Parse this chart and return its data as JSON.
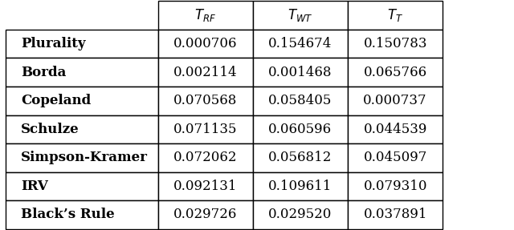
{
  "col_headers": [
    "$T_{RF}$",
    "$T_{WT}$",
    "$T_{T}$"
  ],
  "row_labels": [
    "Plurality",
    "Borda",
    "Copeland",
    "Schulze",
    "Simpson-Kramer",
    "IRV",
    "Black’s Rule"
  ],
  "values": [
    [
      "0.000706",
      "0.154674",
      "0.150783"
    ],
    [
      "0.002114",
      "0.001468",
      "0.065766"
    ],
    [
      "0.070568",
      "0.058405",
      "0.000737"
    ],
    [
      "0.071135",
      "0.060596",
      "0.044539"
    ],
    [
      "0.072062",
      "0.056812",
      "0.045097"
    ],
    [
      "0.092131",
      "0.109611",
      "0.079310"
    ],
    [
      "0.029726",
      "0.029520",
      "0.037891"
    ]
  ],
  "background_color": "#ffffff",
  "text_color": "#000000",
  "line_color": "#000000",
  "figsize": [
    6.4,
    2.87
  ],
  "dpi": 100
}
